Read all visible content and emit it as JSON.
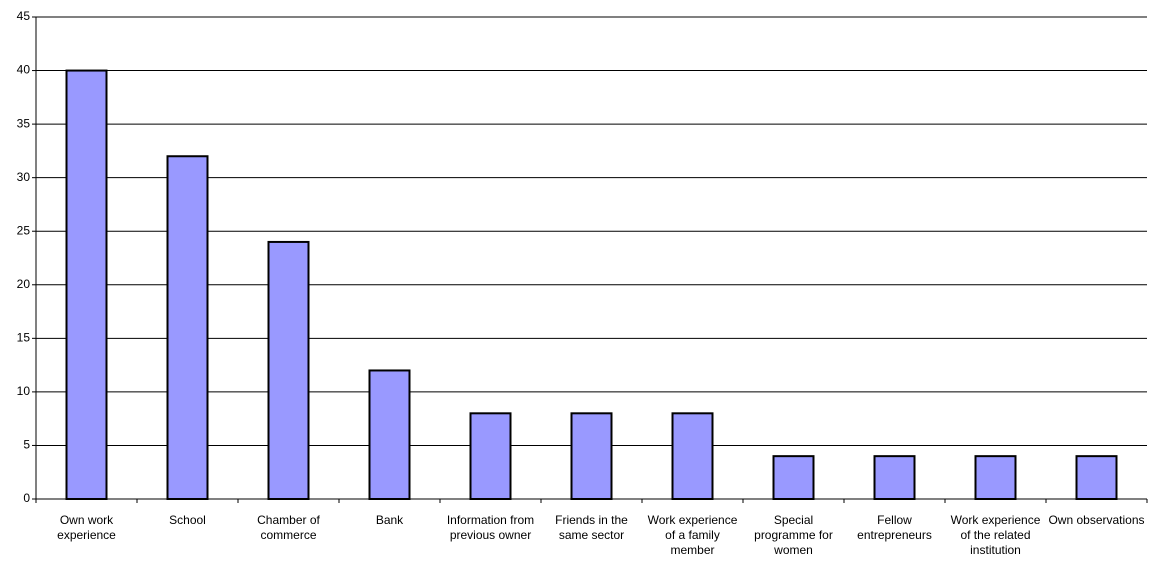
{
  "chart_data": {
    "type": "bar",
    "categories": [
      "Own work experience",
      "School",
      "Chamber of commerce",
      "Bank",
      "Information from previous owner",
      "Friends in the same sector",
      "Work experience of a family member",
      "Special programme for women",
      "Fellow entrepreneurs",
      "Work experience of the related institution",
      "Own observations"
    ],
    "values": [
      40,
      32,
      24,
      12,
      8,
      8,
      8,
      4,
      4,
      4,
      4
    ],
    "color": "#9999ff",
    "ylim": [
      0,
      45
    ],
    "yticks": [
      0,
      5,
      10,
      15,
      20,
      25,
      30,
      35,
      40,
      45
    ],
    "grid": true
  }
}
